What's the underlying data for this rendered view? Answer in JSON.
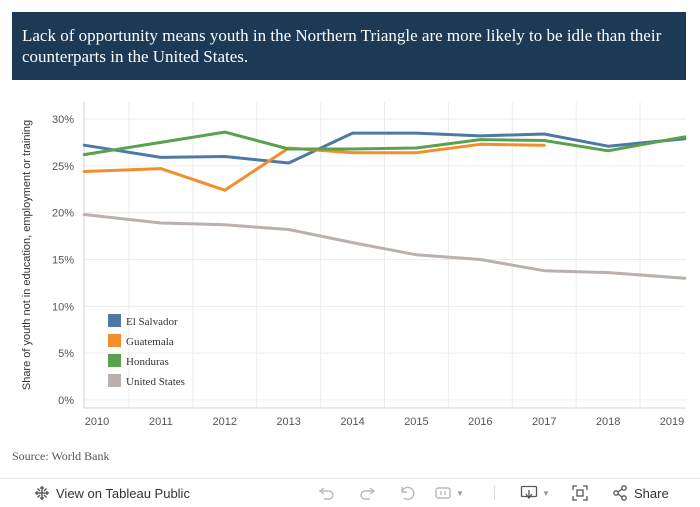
{
  "title": "Lack of opportunity means youth in the Northern Triangle are more likely to be idle than their counterparts in the United States.",
  "source": "Source: World Bank",
  "toolbar": {
    "view_label": "View on Tableau Public",
    "share_label": "Share",
    "icons": [
      "tableau-logo-icon",
      "undo-icon",
      "redo-icon",
      "revert-icon",
      "pause-icon",
      "download-icon",
      "fullscreen-icon",
      "share-icon"
    ]
  },
  "colors": {
    "header_bg": "#1c3a56",
    "el_salvador": "#4e79a7",
    "guatemala": "#f28e2b",
    "honduras": "#59a14f",
    "united_states": "#bab0ac"
  },
  "chart_data": {
    "type": "line",
    "title": "",
    "xlabel": "",
    "ylabel": "Share of youth not in education, employment or training",
    "x": [
      2010,
      2011,
      2012,
      2013,
      2014,
      2015,
      2016,
      2017,
      2018,
      2019
    ],
    "x_ticks": [
      "2010",
      "2011",
      "2012",
      "2013",
      "2014",
      "2015",
      "2016",
      "2017",
      "2018",
      "2019"
    ],
    "ylim": [
      0,
      31
    ],
    "y_ticks": [
      0,
      5,
      10,
      15,
      20,
      25,
      30
    ],
    "y_tick_labels": [
      "0%",
      "5%",
      "10%",
      "15%",
      "20%",
      "25%",
      "30%"
    ],
    "grid": true,
    "legend_position": "bottom-left",
    "series": [
      {
        "name": "El Salvador",
        "color": "#4e79a7",
        "points": [
          [
            2009.8,
            27.2
          ],
          [
            2011,
            25.9
          ],
          [
            2012,
            26.0
          ],
          [
            2013,
            25.3
          ],
          [
            2014,
            28.5
          ],
          [
            2015,
            28.5
          ],
          [
            2016,
            28.2
          ],
          [
            2017,
            28.4
          ],
          [
            2018,
            27.1
          ],
          [
            2019.2,
            27.9
          ]
        ]
      },
      {
        "name": "Guatemala",
        "color": "#f28e2b",
        "points": [
          [
            2009.8,
            24.4
          ],
          [
            2011,
            24.7
          ],
          [
            2012,
            22.4
          ],
          [
            2013,
            26.9
          ],
          [
            2014,
            26.4
          ],
          [
            2015,
            26.4
          ],
          [
            2016,
            27.3
          ],
          [
            2017,
            27.2
          ]
        ]
      },
      {
        "name": "Honduras",
        "color": "#59a14f",
        "points": [
          [
            2009.8,
            26.2
          ],
          [
            2011,
            27.5
          ],
          [
            2012,
            28.6
          ],
          [
            2013,
            26.8
          ],
          [
            2014,
            26.8
          ],
          [
            2015,
            26.9
          ],
          [
            2016,
            27.8
          ],
          [
            2017,
            27.7
          ],
          [
            2018,
            26.6
          ],
          [
            2019.2,
            28.1
          ]
        ]
      },
      {
        "name": "United States",
        "color": "#bab0ac",
        "points": [
          [
            2009.8,
            19.8
          ],
          [
            2011,
            18.9
          ],
          [
            2012,
            18.7
          ],
          [
            2013,
            18.2
          ],
          [
            2014,
            16.8
          ],
          [
            2015,
            15.5
          ],
          [
            2016,
            15.0
          ],
          [
            2017,
            13.8
          ],
          [
            2018,
            13.6
          ],
          [
            2019.2,
            13.0
          ]
        ]
      }
    ]
  }
}
